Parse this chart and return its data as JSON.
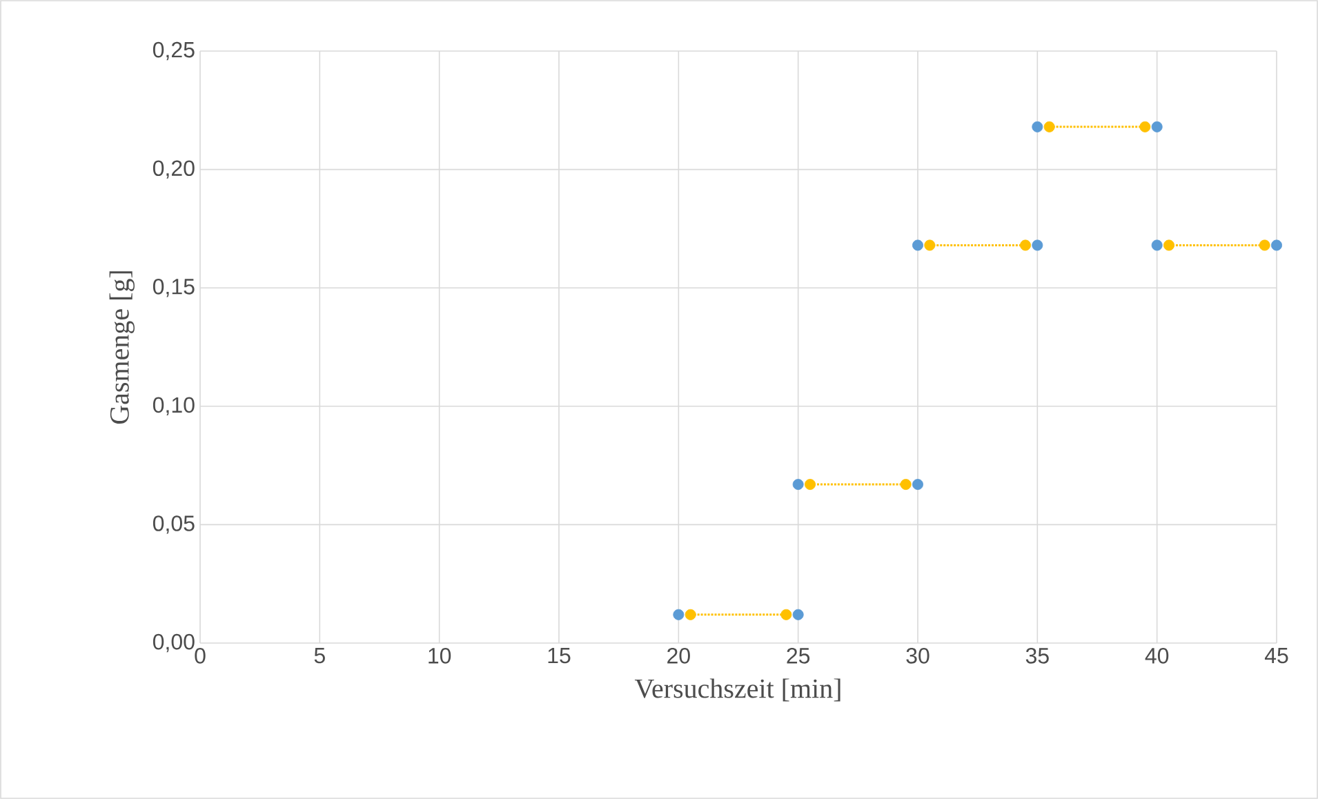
{
  "chart_data": {
    "type": "scatter",
    "xlabel": "Versuchszeit [min]",
    "ylabel": "Gasmenge [g]",
    "xlim": [
      0,
      45
    ],
    "xticks": [
      0,
      5,
      10,
      15,
      20,
      25,
      30,
      35,
      40,
      45
    ],
    "ylim": [
      0,
      0.25
    ],
    "yticks": [
      {
        "value": 0,
        "label": "0,00"
      },
      {
        "value": 0.05,
        "label": "0,05"
      },
      {
        "value": 0.1,
        "label": "0,10"
      },
      {
        "value": 0.15,
        "label": "0,15"
      },
      {
        "value": 0.2,
        "label": "0,20"
      },
      {
        "value": 0.25,
        "label": "0,25"
      }
    ],
    "grid": true,
    "marker": "circle",
    "series": [
      {
        "color": "#5b9bd5",
        "x": [
          20,
          25,
          25,
          30,
          30,
          35,
          35,
          40,
          40,
          45
        ],
        "values": [
          0.012,
          0.012,
          0.067,
          0.067,
          0.168,
          0.168,
          0.218,
          0.218,
          0.168,
          0.168
        ]
      },
      {
        "type": "line",
        "line_style": "dotted",
        "color": "#ffc000",
        "x": [
          20.5,
          24.5,
          null,
          25.5,
          29.5,
          null,
          30.5,
          34.5,
          null,
          35.5,
          39.5,
          null,
          40.5,
          44.5
        ],
        "values": [
          0.012,
          0.012,
          null,
          0.067,
          0.067,
          null,
          0.168,
          0.168,
          null,
          0.218,
          0.218,
          null,
          0.168,
          0.168
        ]
      }
    ]
  }
}
